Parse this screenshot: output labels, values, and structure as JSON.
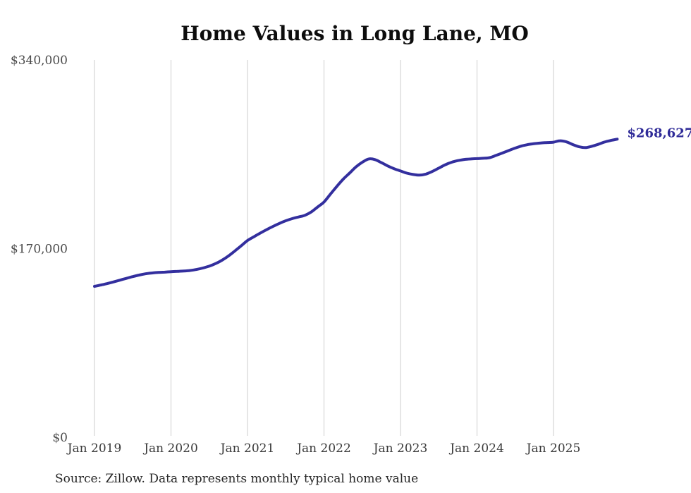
{
  "chart_data": {
    "type": "line",
    "title": "Home Values in Long Lane, MO",
    "source": "Source: Zillow. Data represents monthly typical home value",
    "end_label": "$268,627",
    "line_color": "#332f9e",
    "end_label_color": "#2f2b98",
    "grid_color": "#cdcdcd",
    "legend": "none",
    "grid": "vertical-only",
    "ylim": [
      0,
      340000
    ],
    "y_ticks": [
      {
        "label": "$0",
        "value": 0
      },
      {
        "label": "$170,000",
        "value": 170000
      },
      {
        "label": "$340,000",
        "value": 340000
      }
    ],
    "x_ticks": [
      {
        "label": "Jan 2019",
        "month": 0
      },
      {
        "label": "Jan 2020",
        "month": 12
      },
      {
        "label": "Jan 2021",
        "month": 24
      },
      {
        "label": "Jan 2022",
        "month": 36
      },
      {
        "label": "Jan 2023",
        "month": 48
      },
      {
        "label": "Jan 2024",
        "month": 60
      },
      {
        "label": "Jan 2025",
        "month": 72
      }
    ],
    "series_name": "Typical home value",
    "months": [
      "Jan 2019",
      "Feb 2019",
      "Mar 2019",
      "Apr 2019",
      "May 2019",
      "Jun 2019",
      "Jul 2019",
      "Aug 2019",
      "Sep 2019",
      "Oct 2019",
      "Nov 2019",
      "Dec 2019",
      "Jan 2020",
      "Feb 2020",
      "Mar 2020",
      "Apr 2020",
      "May 2020",
      "Jun 2020",
      "Jul 2020",
      "Aug 2020",
      "Sep 2020",
      "Oct 2020",
      "Nov 2020",
      "Dec 2020",
      "Jan 2021",
      "Feb 2021",
      "Mar 2021",
      "Apr 2021",
      "May 2021",
      "Jun 2021",
      "Jul 2021",
      "Aug 2021",
      "Sep 2021",
      "Oct 2021",
      "Nov 2021",
      "Dec 2021",
      "Jan 2022",
      "Feb 2022",
      "Mar 2022",
      "Apr 2022",
      "May 2022",
      "Jun 2022",
      "Jul 2022",
      "Aug 2022",
      "Sep 2022",
      "Oct 2022",
      "Nov 2022",
      "Dec 2022",
      "Jan 2023",
      "Feb 2023",
      "Mar 2023",
      "Apr 2023",
      "May 2023",
      "Jun 2023",
      "Jul 2023",
      "Aug 2023",
      "Sep 2023",
      "Oct 2023",
      "Nov 2023",
      "Dec 2023",
      "Jan 2024",
      "Feb 2024",
      "Mar 2024",
      "Apr 2024",
      "May 2024",
      "Jun 2024",
      "Jul 2024",
      "Aug 2024",
      "Sep 2024",
      "Oct 2024",
      "Nov 2024",
      "Dec 2024",
      "Jan 2025",
      "Feb 2025",
      "Mar 2025",
      "Apr 2025",
      "May 2025",
      "Jun 2025",
      "Jul 2025",
      "Aug 2025",
      "Sep 2025",
      "Oct 2025",
      "Nov 2025"
    ],
    "values": [
      136000,
      137200,
      138500,
      140000,
      141600,
      143200,
      144800,
      146200,
      147300,
      148000,
      148500,
      148800,
      149200,
      149500,
      149800,
      150300,
      151200,
      152500,
      154200,
      156500,
      159500,
      163300,
      167800,
      172500,
      177300,
      180700,
      184000,
      187100,
      190000,
      192700,
      195100,
      197000,
      198500,
      200000,
      203000,
      207500,
      212000,
      219000,
      226000,
      232500,
      238000,
      243500,
      247800,
      250800,
      250200,
      247500,
      244500,
      242000,
      240000,
      238000,
      236800,
      236200,
      237200,
      239500,
      242500,
      245500,
      247800,
      249300,
      250300,
      250800,
      251100,
      251400,
      252000,
      254000,
      256200,
      258400,
      260600,
      262500,
      263800,
      264600,
      265200,
      265600,
      265900,
      267200,
      266200,
      263800,
      261800,
      261000,
      262200,
      263900,
      266000,
      267500,
      268627
    ]
  }
}
